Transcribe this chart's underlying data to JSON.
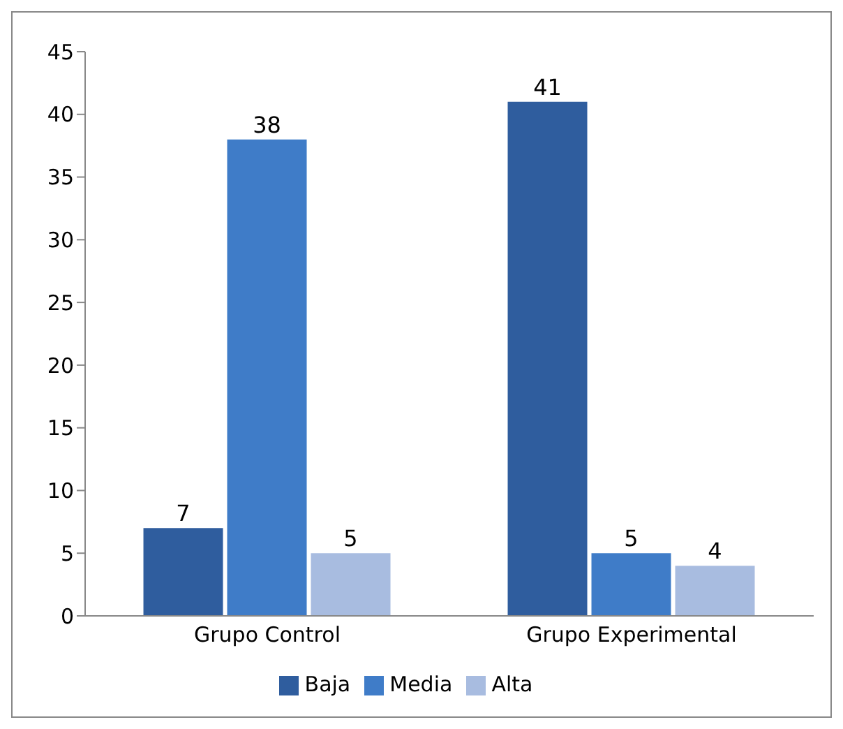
{
  "chart_data": {
    "type": "bar",
    "categories": [
      "Grupo Control",
      "Grupo Experimental"
    ],
    "series": [
      {
        "name": "Baja",
        "color": "#2f5d9e",
        "values": [
          7,
          41
        ]
      },
      {
        "name": "Media",
        "color": "#3f7cc8",
        "values": [
          38,
          5
        ]
      },
      {
        "name": "Alta",
        "color": "#a8bce0",
        "values": [
          5,
          4
        ]
      }
    ],
    "ylim": [
      0,
      45
    ],
    "yticks": [
      0,
      5,
      10,
      15,
      20,
      25,
      30,
      35,
      40,
      45
    ],
    "data_labels": true,
    "legend": "bottom",
    "grid": false
  }
}
